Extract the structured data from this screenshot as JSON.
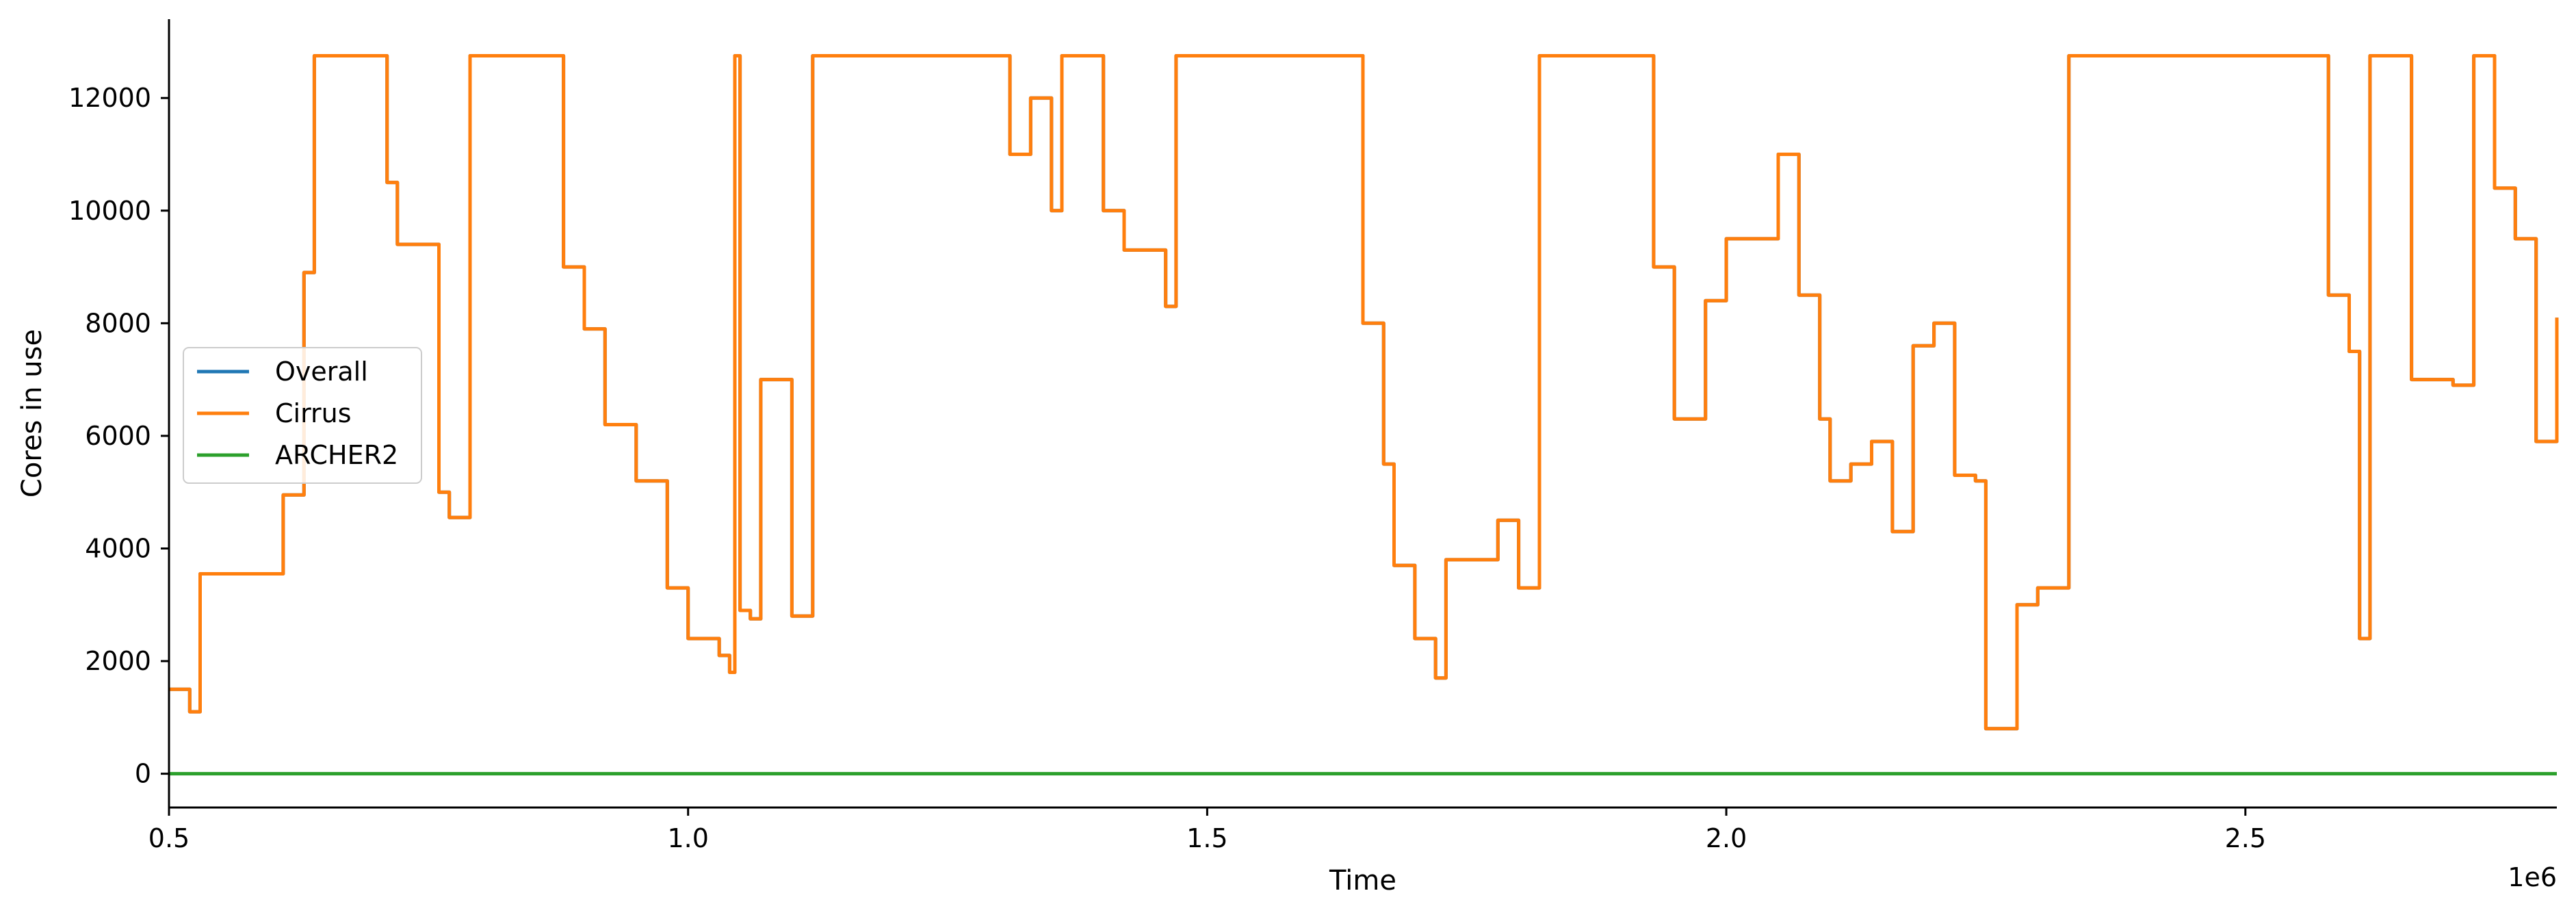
{
  "chart_data": {
    "type": "line",
    "xlabel": "Time",
    "ylabel": "Cores in use",
    "x_offset_text": "1e6",
    "xlim": [
      0.5,
      2.8
    ],
    "ylim": [
      -600,
      13400
    ],
    "x_ticks": [
      0.5,
      1.0,
      1.5,
      2.0,
      2.5
    ],
    "x_tick_labels": [
      "0.5",
      "1.0",
      "1.5",
      "2.0",
      "2.5"
    ],
    "y_ticks": [
      0,
      2000,
      4000,
      6000,
      8000,
      10000,
      12000
    ],
    "y_tick_labels": [
      "0",
      "2000",
      "4000",
      "6000",
      "8000",
      "10000",
      "12000"
    ],
    "grid": false,
    "legend_position": "center-left",
    "series": [
      {
        "name": "Overall",
        "color": "#1f77b4",
        "x": [
          0.5,
          0.52,
          0.52,
          0.53,
          0.53,
          0.61,
          0.61,
          0.63,
          0.63,
          0.64,
          0.7,
          0.71,
          0.72,
          0.75,
          0.76,
          0.77,
          0.78,
          0.79,
          0.83,
          0.87,
          0.88,
          0.9,
          0.92,
          0.95,
          0.98,
          1.0,
          1.03,
          1.04,
          1.045,
          1.05,
          1.06,
          1.07,
          1.1,
          1.11,
          1.12,
          1.13,
          1.2,
          1.3,
          1.31,
          1.33,
          1.35,
          1.36,
          1.38,
          1.4,
          1.42,
          1.45,
          1.46,
          1.47,
          1.55,
          1.64,
          1.65,
          1.67,
          1.68,
          1.7,
          1.72,
          1.73,
          1.75,
          1.78,
          1.8,
          1.81,
          1.82,
          1.85,
          1.9,
          1.92,
          1.93,
          1.95,
          1.98,
          2.0,
          2.05,
          2.07,
          2.09,
          2.1,
          2.12,
          2.14,
          2.16,
          2.18,
          2.2,
          2.22,
          2.24,
          2.25,
          2.28,
          2.3,
          2.32,
          2.33,
          2.34,
          2.45,
          2.48,
          2.5,
          2.52,
          2.55,
          2.58,
          2.6,
          2.61,
          2.62,
          2.66,
          2.7,
          2.72,
          2.74,
          2.76,
          2.78,
          2.8
        ],
        "y": [
          1500,
          1500,
          1100,
          1100,
          3550,
          3550,
          4950,
          5000,
          8900,
          12750,
          12750,
          10500,
          9400,
          9400,
          5000,
          4550,
          4550,
          12750,
          12750,
          12750,
          9000,
          7900,
          6200,
          5200,
          3300,
          2400,
          2100,
          1800,
          12750,
          2900,
          2750,
          7000,
          2800,
          2800,
          12750,
          12750,
          12750,
          12750,
          11000,
          12000,
          10000,
          12750,
          12750,
          10000,
          9300,
          9300,
          8300,
          12750,
          12750,
          12750,
          8000,
          5500,
          3700,
          2400,
          1700,
          3800,
          3800,
          4500,
          3300,
          3300,
          12750,
          12750,
          12750,
          12750,
          9000,
          6300,
          8400,
          9500,
          11000,
          8500,
          6300,
          5200,
          5500,
          5900,
          4300,
          7600,
          8000,
          5300,
          5200,
          800,
          3000,
          3300,
          3300,
          12750,
          12750,
          12750,
          12750,
          12750,
          12750,
          12750,
          8500,
          7500,
          2400,
          12750,
          7000,
          6900,
          12750,
          10400,
          9500,
          5900,
          8100
        ]
      },
      {
        "name": "Cirrus",
        "color": "#ff7f0e",
        "x": [
          0.5,
          0.52,
          0.52,
          0.53,
          0.53,
          0.61,
          0.61,
          0.63,
          0.63,
          0.64,
          0.7,
          0.71,
          0.72,
          0.75,
          0.76,
          0.77,
          0.78,
          0.79,
          0.83,
          0.87,
          0.88,
          0.9,
          0.92,
          0.95,
          0.98,
          1.0,
          1.03,
          1.04,
          1.045,
          1.05,
          1.06,
          1.07,
          1.1,
          1.11,
          1.12,
          1.13,
          1.2,
          1.3,
          1.31,
          1.33,
          1.35,
          1.36,
          1.38,
          1.4,
          1.42,
          1.45,
          1.46,
          1.47,
          1.55,
          1.64,
          1.65,
          1.67,
          1.68,
          1.7,
          1.72,
          1.73,
          1.75,
          1.78,
          1.8,
          1.81,
          1.82,
          1.85,
          1.9,
          1.92,
          1.93,
          1.95,
          1.98,
          2.0,
          2.05,
          2.07,
          2.09,
          2.1,
          2.12,
          2.14,
          2.16,
          2.18,
          2.2,
          2.22,
          2.24,
          2.25,
          2.28,
          2.3,
          2.32,
          2.33,
          2.34,
          2.45,
          2.48,
          2.5,
          2.52,
          2.55,
          2.58,
          2.6,
          2.61,
          2.62,
          2.66,
          2.7,
          2.72,
          2.74,
          2.76,
          2.78,
          2.8
        ],
        "y": [
          1500,
          1500,
          1100,
          1100,
          3550,
          3550,
          4950,
          5000,
          8900,
          12750,
          12750,
          10500,
          9400,
          9400,
          5000,
          4550,
          4550,
          12750,
          12750,
          12750,
          9000,
          7900,
          6200,
          5200,
          3300,
          2400,
          2100,
          1800,
          12750,
          2900,
          2750,
          7000,
          2800,
          2800,
          12750,
          12750,
          12750,
          12750,
          11000,
          12000,
          10000,
          12750,
          12750,
          10000,
          9300,
          9300,
          8300,
          12750,
          12750,
          12750,
          8000,
          5500,
          3700,
          2400,
          1700,
          3800,
          3800,
          4500,
          3300,
          3300,
          12750,
          12750,
          12750,
          12750,
          9000,
          6300,
          8400,
          9500,
          11000,
          8500,
          6300,
          5200,
          5500,
          5900,
          4300,
          7600,
          8000,
          5300,
          5200,
          800,
          3000,
          3300,
          3300,
          12750,
          12750,
          12750,
          12750,
          12750,
          12750,
          12750,
          8500,
          7500,
          2400,
          12750,
          7000,
          6900,
          12750,
          10400,
          9500,
          5900,
          8100
        ]
      },
      {
        "name": "ARCHER2",
        "color": "#2ca02c",
        "x": [
          0.5,
          2.8
        ],
        "y": [
          0,
          0
        ]
      }
    ]
  }
}
